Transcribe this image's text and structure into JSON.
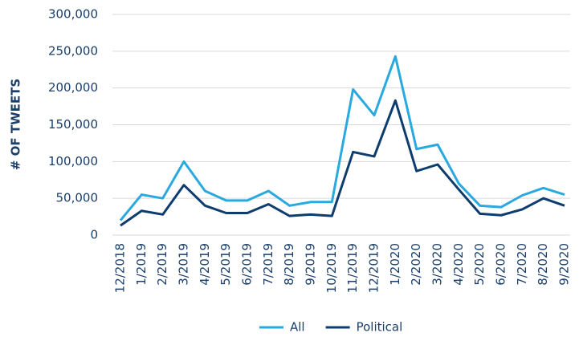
{
  "chart_data": {
    "type": "line",
    "y_label": "# OF TWEETS",
    "categories": [
      "12/2018",
      "1/2019",
      "2/2019",
      "3/2019",
      "4/2019",
      "5/2019",
      "6/2019",
      "7/2019",
      "8/2019",
      "9/2019",
      "10/2019",
      "11/2019",
      "12/2019",
      "1/2020",
      "2/2020",
      "3/2020",
      "4/2020",
      "5/2020",
      "6/2020",
      "7/2020",
      "8/2020",
      "9/2020"
    ],
    "series": [
      {
        "name": "All",
        "color": "#29a9e0",
        "values": [
          20000,
          55000,
          50000,
          100000,
          60000,
          47000,
          47000,
          60000,
          40000,
          45000,
          45000,
          198000,
          163000,
          243000,
          117000,
          123000,
          70000,
          40000,
          38000,
          54000,
          64000,
          55000
        ]
      },
      {
        "name": "Political",
        "color": "#0d3c6e",
        "values": [
          13000,
          33000,
          28000,
          68000,
          40000,
          30000,
          30000,
          42000,
          26000,
          28000,
          26000,
          113000,
          107000,
          183000,
          87000,
          96000,
          62000,
          29000,
          27000,
          35000,
          50000,
          40000
        ]
      }
    ],
    "ylim": [
      0,
      300000
    ],
    "yticks": [
      0,
      {
        "value": 50000,
        "label": "50,000"
      },
      {
        "value": 100000,
        "label": "100,000"
      },
      {
        "value": 150000,
        "label": "150,000"
      },
      {
        "value": 200000,
        "label": "200,000"
      },
      {
        "value": 250000,
        "label": "250,000"
      },
      {
        "value": 300000,
        "label": "300,000"
      }
    ],
    "grid": true,
    "legend": "bottom"
  }
}
